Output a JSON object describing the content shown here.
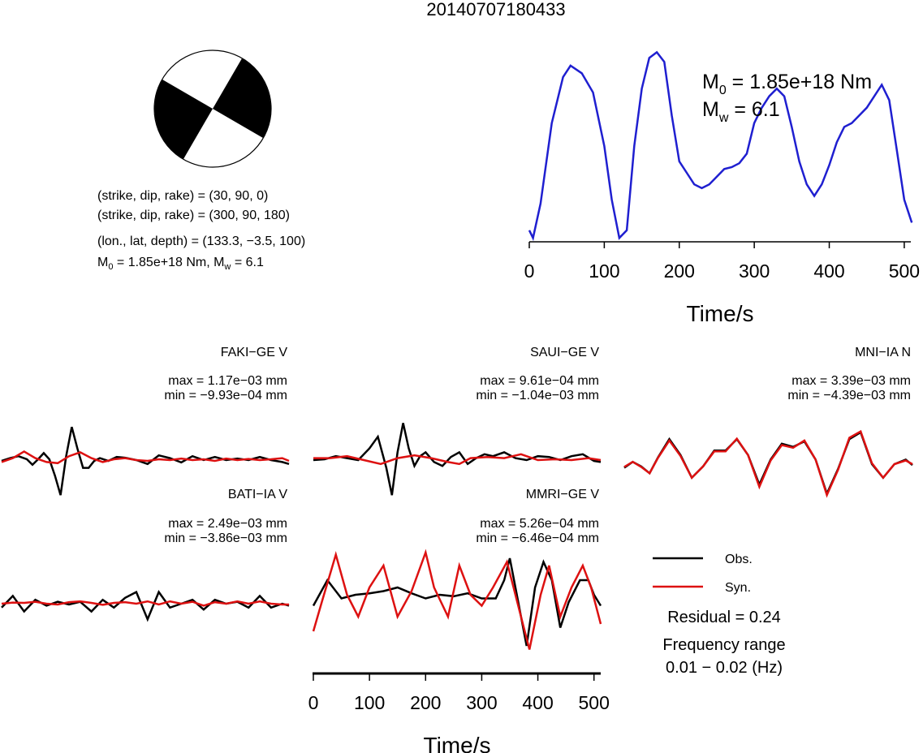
{
  "title": "20140707180433",
  "focal_mechanism": {
    "nodal_plane_1": "(strike, dip, rake) = (30, 90, 0)",
    "nodal_plane_2": "(strike, dip, rake) = (300, 90, 180)",
    "location": "(lon., lat, depth) = (133.3, −3.5, 100)",
    "moment_prefix": "M",
    "moment_sub": "0",
    "moment_mid": " = 1.85e+18 Nm, M",
    "moment_sub2": "w",
    "moment_suffix": " = 6.1"
  },
  "source_time_function": {
    "m0_label": "M",
    "m0_sub": "0",
    "m0_value": " = 1.85e+18 Nm",
    "mw_label": "M",
    "mw_sub": "w",
    "mw_value": " = 6.1",
    "xlabel": "Time/s",
    "color": "#1f1fd0"
  },
  "bottom_axis": {
    "xlabel": "Time/s"
  },
  "legend": {
    "obs_label": "Obs.",
    "syn_label": "Syn.",
    "obs_color": "#000000",
    "syn_color": "#dd1111",
    "residual": "Residual = 0.24",
    "freq_title": "Frequency range",
    "freq_value": "0.01 − 0.02 (Hz)"
  },
  "traces": [
    {
      "name": "FAKI−GE V",
      "max": "max = 1.17e−03 mm",
      "min": "min = −9.93e−04 mm"
    },
    {
      "name": "SAUI−GE V",
      "max": "max = 9.61e−04 mm",
      "min": "min = −1.04e−03 mm"
    },
    {
      "name": "MNI−IA N",
      "max": "max = 3.39e−03 mm",
      "min": "min = −4.39e−03 mm"
    },
    {
      "name": "BATI−IA V",
      "max": "max = 2.49e−03 mm",
      "min": "min = −3.86e−03 mm"
    },
    {
      "name": "MMRI−GE V",
      "max": "max = 5.26e−04 mm",
      "min": "min = −6.46e−04 mm"
    }
  ],
  "chart_data": [
    {
      "type": "line",
      "name": "source_time_function",
      "xlabel": "Time/s",
      "ylabel": "",
      "xlim": [
        0,
        512
      ],
      "x_ticks": [
        0,
        100,
        200,
        300,
        400,
        500
      ],
      "series": [
        {
          "x": [
            0,
            5,
            15,
            30,
            45,
            55,
            70,
            85,
            100,
            110,
            120,
            130,
            140,
            150,
            160,
            170,
            180,
            190,
            200,
            210,
            220,
            230,
            240,
            250,
            260,
            270,
            280,
            290,
            300,
            310,
            320,
            330,
            340,
            350,
            360,
            370,
            380,
            390,
            400,
            410,
            420,
            430,
            440,
            450,
            460,
            470,
            480,
            490,
            500,
            510
          ],
          "y": [
            0.06,
            0.02,
            0.2,
            0.62,
            0.86,
            0.92,
            0.88,
            0.78,
            0.5,
            0.22,
            0.02,
            0.06,
            0.5,
            0.8,
            0.96,
            0.99,
            0.94,
            0.66,
            0.42,
            0.36,
            0.3,
            0.28,
            0.3,
            0.34,
            0.38,
            0.39,
            0.41,
            0.46,
            0.62,
            0.7,
            0.76,
            0.8,
            0.76,
            0.6,
            0.42,
            0.3,
            0.24,
            0.3,
            0.4,
            0.52,
            0.6,
            0.62,
            0.66,
            0.7,
            0.76,
            0.82,
            0.74,
            0.48,
            0.22,
            0.1
          ]
        }
      ]
    },
    {
      "type": "line",
      "name": "FAKI-GE V",
      "xlim": [
        0,
        512
      ],
      "series": [
        {
          "name": "Obs.",
          "x": [
            0,
            15,
            30,
            45,
            55,
            65,
            75,
            85,
            95,
            105,
            115,
            125,
            135,
            145,
            155,
            165,
            175,
            190,
            205,
            220,
            240,
            260,
            280,
            300,
            320,
            340,
            360,
            380,
            400,
            420,
            440,
            460,
            480,
            500,
            512
          ],
          "y": [
            -0.02,
            0.05,
            0.1,
            0.02,
            -0.12,
            0.02,
            0.18,
            0.02,
            -0.4,
            -0.9,
            0.1,
            0.85,
            0.3,
            -0.2,
            -0.2,
            -0.02,
            0.05,
            -0.02,
            0.08,
            0.06,
            0.0,
            -0.1,
            0.12,
            0.05,
            -0.06,
            0.1,
            0.0,
            0.08,
            0.0,
            0.04,
            0.0,
            0.08,
            0.0,
            -0.05,
            -0.1
          ]
        },
        {
          "name": "Syn.",
          "x": [
            0,
            20,
            40,
            60,
            80,
            100,
            120,
            140,
            160,
            180,
            200,
            220,
            240,
            260,
            280,
            300,
            320,
            340,
            360,
            380,
            400,
            420,
            440,
            460,
            480,
            500,
            512
          ],
          "y": [
            -0.05,
            0.05,
            0.22,
            0.05,
            -0.05,
            -0.08,
            0.1,
            0.2,
            0.05,
            -0.05,
            0.02,
            0.05,
            0.0,
            -0.02,
            0.02,
            0.0,
            0.04,
            0.0,
            0.02,
            -0.02,
            0.04,
            0.0,
            0.03,
            0.0,
            0.02,
            0.05,
            -0.02
          ]
        }
      ]
    },
    {
      "type": "line",
      "name": "SAUI-GE V",
      "xlim": [
        0,
        512
      ],
      "series": [
        {
          "name": "Obs.",
          "x": [
            0,
            20,
            40,
            60,
            80,
            100,
            115,
            130,
            140,
            150,
            160,
            170,
            180,
            190,
            200,
            215,
            230,
            245,
            260,
            275,
            290,
            305,
            320,
            340,
            360,
            380,
            400,
            420,
            440,
            460,
            480,
            500,
            512
          ],
          "y": [
            0.0,
            0.02,
            0.1,
            0.05,
            0.0,
            0.3,
            0.6,
            -0.2,
            -0.9,
            0.2,
            0.95,
            0.3,
            -0.15,
            0.1,
            0.2,
            -0.05,
            -0.15,
            0.08,
            0.2,
            -0.1,
            0.05,
            0.15,
            0.1,
            0.2,
            0.05,
            0.0,
            0.1,
            0.08,
            0.0,
            0.1,
            0.15,
            -0.02,
            -0.05
          ]
        },
        {
          "name": "Syn.",
          "x": [
            0,
            30,
            60,
            90,
            120,
            150,
            180,
            210,
            240,
            260,
            280,
            310,
            340,
            370,
            400,
            430,
            460,
            490,
            512
          ],
          "y": [
            0.05,
            0.05,
            0.1,
            0.0,
            -0.1,
            0.05,
            0.12,
            0.05,
            -0.05,
            -0.1,
            0.05,
            0.08,
            0.05,
            0.15,
            0.0,
            0.02,
            0.0,
            0.05,
            0.0
          ]
        }
      ]
    },
    {
      "type": "line",
      "name": "MNI-IA N",
      "xlim": [
        0,
        512
      ],
      "series": [
        {
          "name": "Obs.",
          "x": [
            0,
            15,
            30,
            45,
            60,
            80,
            100,
            120,
            140,
            160,
            180,
            200,
            220,
            240,
            260,
            280,
            300,
            320,
            340,
            360,
            380,
            400,
            420,
            440,
            460,
            480,
            500,
            512
          ],
          "y": [
            -0.08,
            0.05,
            -0.05,
            -0.2,
            0.15,
            0.55,
            0.2,
            -0.3,
            -0.05,
            0.3,
            0.3,
            0.55,
            0.2,
            -0.45,
            0.1,
            0.45,
            0.38,
            0.5,
            0.1,
            -0.65,
            -0.1,
            0.55,
            0.7,
            0.0,
            -0.3,
            0.0,
            0.1,
            -0.02
          ]
        },
        {
          "name": "Syn.",
          "x": [
            0,
            15,
            30,
            45,
            60,
            80,
            100,
            120,
            140,
            160,
            180,
            200,
            220,
            240,
            260,
            280,
            300,
            320,
            340,
            360,
            380,
            400,
            420,
            440,
            460,
            480,
            500,
            512
          ],
          "y": [
            -0.06,
            0.05,
            -0.06,
            -0.2,
            0.14,
            0.52,
            0.18,
            -0.3,
            -0.05,
            0.28,
            0.28,
            0.56,
            0.2,
            -0.5,
            0.08,
            0.42,
            0.36,
            0.52,
            0.1,
            -0.68,
            -0.12,
            0.58,
            0.72,
            0.02,
            -0.3,
            0.0,
            0.08,
            0.0
          ]
        }
      ]
    },
    {
      "type": "line",
      "name": "BATI-IA V",
      "xlim": [
        0,
        512
      ],
      "series": [
        {
          "name": "Obs.",
          "x": [
            0,
            20,
            40,
            60,
            80,
            100,
            120,
            140,
            160,
            180,
            200,
            220,
            240,
            260,
            280,
            300,
            320,
            340,
            360,
            380,
            400,
            420,
            440,
            460,
            480,
            500,
            512
          ],
          "y": [
            -0.1,
            0.2,
            -0.2,
            0.1,
            -0.05,
            0.05,
            -0.02,
            0.05,
            -0.2,
            0.1,
            -0.1,
            0.15,
            0.3,
            -0.4,
            0.3,
            -0.1,
            0.0,
            0.1,
            -0.15,
            0.1,
            0.0,
            0.05,
            -0.1,
            0.2,
            -0.1,
            0.0,
            -0.05
          ]
        },
        {
          "name": "Syn.",
          "x": [
            0,
            20,
            40,
            60,
            80,
            100,
            120,
            140,
            160,
            180,
            200,
            220,
            240,
            260,
            280,
            300,
            320,
            340,
            360,
            380,
            400,
            420,
            440,
            460,
            480,
            500,
            512
          ],
          "y": [
            0.0,
            0.03,
            0.02,
            0.05,
            0.0,
            -0.02,
            0.04,
            0.06,
            0.02,
            -0.03,
            0.02,
            0.04,
            0.0,
            0.06,
            -0.02,
            0.06,
            0.0,
            0.05,
            -0.05,
            0.04,
            0.0,
            0.06,
            0.0,
            0.06,
            0.0,
            -0.02,
            -0.02
          ]
        }
      ]
    },
    {
      "type": "line",
      "name": "MMRI-GE V",
      "xlim": [
        0,
        512
      ],
      "x_ticks": [
        0,
        100,
        200,
        300,
        400,
        500
      ],
      "xlabel": "Time/s",
      "series": [
        {
          "name": "Obs.",
          "x": [
            0,
            25,
            50,
            75,
            100,
            125,
            150,
            175,
            200,
            225,
            250,
            275,
            300,
            325,
            340,
            350,
            365,
            380,
            395,
            410,
            425,
            440,
            455,
            475,
            490,
            500,
            512
          ],
          "y": [
            -0.05,
            0.3,
            0.05,
            0.1,
            0.12,
            0.15,
            0.2,
            0.12,
            0.05,
            0.1,
            0.08,
            0.12,
            0.05,
            0.05,
            0.3,
            0.6,
            0.0,
            -0.6,
            0.2,
            0.55,
            0.3,
            -0.35,
            0.0,
            0.3,
            0.3,
            0.1,
            -0.05
          ]
        },
        {
          "name": "Syn.",
          "x": [
            0,
            15,
            40,
            60,
            80,
            100,
            125,
            150,
            175,
            200,
            215,
            240,
            260,
            280,
            300,
            320,
            345,
            360,
            385,
            405,
            420,
            440,
            460,
            480,
            495,
            512
          ],
          "y": [
            -0.4,
            0.0,
            0.65,
            0.1,
            -0.2,
            0.2,
            0.5,
            -0.2,
            0.15,
            0.68,
            0.2,
            -0.2,
            0.5,
            0.1,
            -0.05,
            0.2,
            0.55,
            0.1,
            -0.65,
            0.1,
            0.5,
            -0.2,
            0.2,
            0.5,
            0.2,
            -0.3
          ]
        }
      ]
    }
  ]
}
